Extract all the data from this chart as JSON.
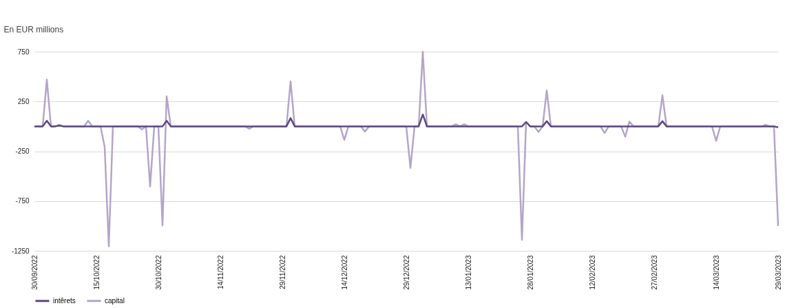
{
  "chart_data": {
    "type": "line",
    "ylabel": "En EUR millions",
    "xlim": [
      "2022-09-30",
      "2023-03-29"
    ],
    "xticks": [
      {
        "value": "2022-09-30",
        "label": "30/09/2022"
      },
      {
        "value": "2022-10-15",
        "label": "15/10/2022"
      },
      {
        "value": "2022-10-30",
        "label": "30/10/2022"
      },
      {
        "value": "2022-11-14",
        "label": "14/11/2022"
      },
      {
        "value": "2022-11-29",
        "label": "29/11/2022"
      },
      {
        "value": "2022-12-14",
        "label": "14/12/2022"
      },
      {
        "value": "2022-12-29",
        "label": "29/12/2022"
      },
      {
        "value": "2023-01-13",
        "label": "13/01/2023"
      },
      {
        "value": "2023-01-28",
        "label": "28/01/2023"
      },
      {
        "value": "2023-02-12",
        "label": "12/02/2023"
      },
      {
        "value": "2023-02-27",
        "label": "27/02/2023"
      },
      {
        "value": "2023-03-14",
        "label": "14/03/2023"
      },
      {
        "value": "2023-03-29",
        "label": "29/03/2023"
      }
    ],
    "ylim": [
      -1250,
      750
    ],
    "yticks": [
      -1250,
      -750,
      -250,
      250,
      750
    ],
    "grid": "y",
    "legend": "bottom",
    "marker": "none",
    "line_style": "solid",
    "series": [
      {
        "name": "intêrets",
        "color": "#5b4a7d",
        "x": [
          "2022-09-30",
          "2022-10-02",
          "2022-10-03",
          "2022-10-04",
          "2022-10-05",
          "2022-10-06",
          "2022-10-07",
          "2022-10-31",
          "2022-11-01",
          "2022-11-02",
          "2022-11-30",
          "2022-12-01",
          "2022-12-02",
          "2023-01-01",
          "2023-01-02",
          "2023-01-03",
          "2023-01-26",
          "2023-01-27",
          "2023-01-28",
          "2023-01-31",
          "2023-02-01",
          "2023-02-02",
          "2023-02-28",
          "2023-03-01",
          "2023-03-02",
          "2023-03-28",
          "2023-03-29"
        ],
        "values": [
          0,
          0,
          56,
          0,
          0,
          8,
          0,
          0,
          56,
          0,
          0,
          83,
          0,
          0,
          119,
          0,
          0,
          44,
          0,
          0,
          52,
          0,
          0,
          52,
          0,
          0,
          -10
        ]
      },
      {
        "name": "capital",
        "color": "#b3a5ca",
        "x": [
          "2022-09-30",
          "2022-10-02",
          "2022-10-03",
          "2022-10-04",
          "2022-10-05",
          "2022-10-06",
          "2022-10-07",
          "2022-10-12",
          "2022-10-13",
          "2022-10-14",
          "2022-10-16",
          "2022-10-17",
          "2022-10-18",
          "2022-10-19",
          "2022-10-25",
          "2022-10-26",
          "2022-10-27",
          "2022-10-28",
          "2022-10-29",
          "2022-10-30",
          "2022-10-31",
          "2022-11-01",
          "2022-11-02",
          "2022-11-20",
          "2022-11-21",
          "2022-11-22",
          "2022-11-30",
          "2022-12-01",
          "2022-12-02",
          "2022-12-13",
          "2022-12-14",
          "2022-12-15",
          "2022-12-18",
          "2022-12-19",
          "2022-12-20",
          "2022-12-29",
          "2022-12-30",
          "2022-12-31",
          "2023-01-01",
          "2023-01-02",
          "2023-01-03",
          "2023-01-09",
          "2023-01-10",
          "2023-01-11",
          "2023-01-12",
          "2023-01-13",
          "2023-01-25",
          "2023-01-26",
          "2023-01-27",
          "2023-01-28",
          "2023-01-29",
          "2023-01-30",
          "2023-01-31",
          "2023-02-01",
          "2023-02-02",
          "2023-02-14",
          "2023-02-15",
          "2023-02-16",
          "2023-02-19",
          "2023-02-20",
          "2023-02-21",
          "2023-02-22",
          "2023-02-28",
          "2023-03-01",
          "2023-03-02",
          "2023-03-13",
          "2023-03-14",
          "2023-03-15",
          "2023-03-25",
          "2023-03-26",
          "2023-03-27",
          "2023-03-28",
          "2023-03-29"
        ],
        "values": [
          0,
          0,
          469,
          0,
          0,
          15,
          0,
          0,
          56,
          0,
          0,
          -206,
          -1204,
          0,
          0,
          -31,
          0,
          -604,
          0,
          0,
          -994,
          302,
          0,
          0,
          -25,
          0,
          0,
          452,
          0,
          0,
          -135,
          0,
          0,
          -52,
          0,
          0,
          -417,
          0,
          0,
          750,
          0,
          0,
          20,
          0,
          20,
          0,
          0,
          -1140,
          44,
          0,
          0,
          -56,
          0,
          360,
          0,
          0,
          -67,
          0,
          0,
          -104,
          48,
          0,
          0,
          312,
          0,
          0,
          -146,
          0,
          0,
          15,
          0,
          0,
          -1000
        ]
      }
    ]
  }
}
